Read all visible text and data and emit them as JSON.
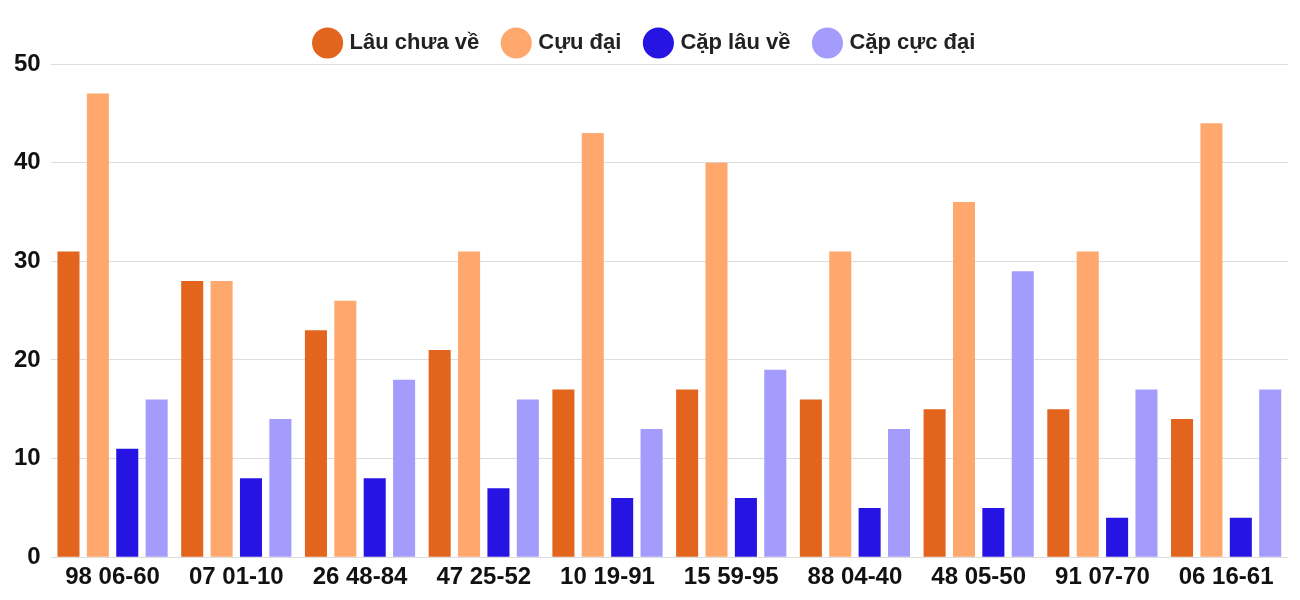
{
  "chart_data": {
    "type": "bar",
    "categories": [
      "98 06-60",
      "07 01-10",
      "26 48-84",
      "47 25-52",
      "10 19-91",
      "15 59-95",
      "88 04-40",
      "48 05-50",
      "91 07-70",
      "06 16-61"
    ],
    "series": [
      {
        "name": "Lâu chưa về",
        "color": "#e3651d",
        "values": [
          31,
          28,
          23,
          21,
          17,
          17,
          16,
          15,
          15,
          14
        ]
      },
      {
        "name": "Cựu đại",
        "color": "#ffa86e",
        "values": [
          47,
          28,
          26,
          31,
          43,
          40,
          31,
          36,
          31,
          44
        ]
      },
      {
        "name": "Cặp lâu về",
        "color": "#2614e3",
        "values": [
          11,
          8,
          8,
          7,
          6,
          6,
          5,
          5,
          4,
          4
        ]
      },
      {
        "name": "Cặp cực đại",
        "color": "#a39cfc",
        "values": [
          16,
          14,
          18,
          16,
          13,
          19,
          13,
          29,
          17,
          17
        ]
      }
    ],
    "ylim": [
      0,
      50
    ],
    "yticks": [
      0,
      10,
      20,
      30,
      40,
      50
    ],
    "grid": "y",
    "legend": "top"
  }
}
